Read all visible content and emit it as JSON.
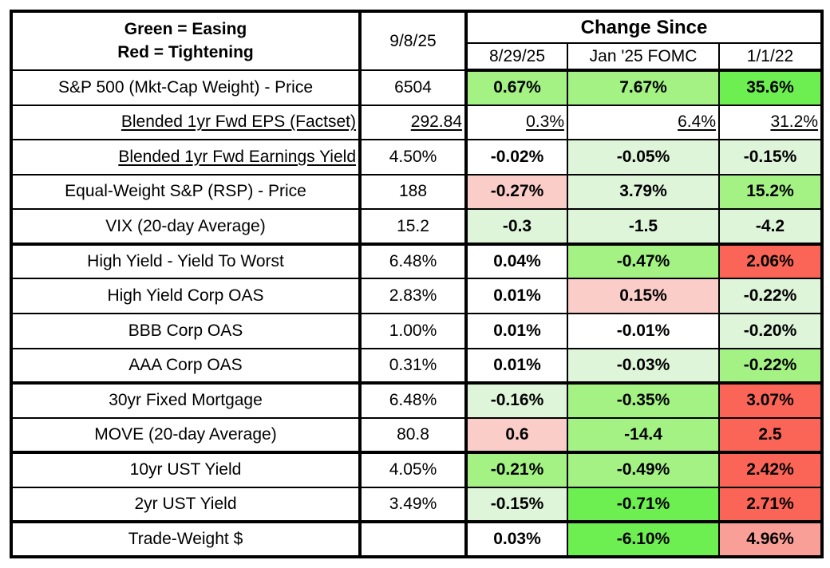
{
  "header": {
    "legend_line1": "Green = Easing",
    "legend_line2": "Red = Tightening",
    "current_date_label": "9/8/25",
    "change_since_label": "Change Since",
    "change_columns": [
      "8/29/25",
      "Jan '25 FOMC",
      "1/1/22"
    ]
  },
  "colors": {
    "white": "#FFFFFF",
    "g1": "#DFF5DA",
    "g2": "#A3F283",
    "g3": "#6DEF51",
    "r1": "#FACDC9",
    "r2": "#FA9F97",
    "r3": "#FB6557"
  },
  "chart_data": {
    "type": "table",
    "title": "Market indicators: current level and change since prior dates",
    "legend": {
      "green_means": "Easing",
      "red_means": "Tightening"
    },
    "columns": [
      "Green = Easing / Red = Tightening",
      "9/8/25",
      "8/29/25",
      "Jan '25 FOMC",
      "1/1/22"
    ],
    "rows": [
      {
        "label": "S&P 500 (Mkt-Cap Weight) - Price",
        "value": "6504",
        "changes": [
          "0.67%",
          "7.67%",
          "35.6%"
        ],
        "bg": [
          "g2",
          "g2",
          "g3"
        ],
        "style": "plain",
        "group_end": false
      },
      {
        "label": "Blended 1yr Fwd EPS (Factset)",
        "value": "292.84",
        "changes": [
          "0.3%",
          "6.4%",
          "31.2%"
        ],
        "bg": [
          "white",
          "white",
          "white"
        ],
        "style": "all_underline",
        "group_end": false
      },
      {
        "label": "Blended 1yr Fwd Earnings Yield",
        "value": "4.50%",
        "changes": [
          "-0.02%",
          "-0.05%",
          "-0.15%"
        ],
        "bg": [
          "white",
          "g1",
          "g1"
        ],
        "style": "label_underline",
        "group_end": false
      },
      {
        "label": "Equal-Weight S&P (RSP) - Price",
        "value": "188",
        "changes": [
          "-0.27%",
          "3.79%",
          "15.2%"
        ],
        "bg": [
          "r1",
          "g1",
          "g2"
        ],
        "style": "plain",
        "group_end": false
      },
      {
        "label": "VIX (20-day Average)",
        "value": "15.2",
        "changes": [
          "-0.3",
          "-1.5",
          "-4.2"
        ],
        "bg": [
          "g1",
          "g1",
          "g1"
        ],
        "style": "plain",
        "group_end": true
      },
      {
        "label": "High Yield - Yield To Worst",
        "value": "6.48%",
        "changes": [
          "0.04%",
          "-0.47%",
          "2.06%"
        ],
        "bg": [
          "white",
          "g2",
          "r3"
        ],
        "style": "plain",
        "group_end": false
      },
      {
        "label": "High Yield Corp OAS",
        "value": "2.83%",
        "changes": [
          "0.01%",
          "0.15%",
          "-0.22%"
        ],
        "bg": [
          "white",
          "r1",
          "g1"
        ],
        "style": "plain",
        "group_end": false
      },
      {
        "label": "BBB Corp OAS",
        "value": "1.00%",
        "changes": [
          "0.01%",
          "-0.01%",
          "-0.20%"
        ],
        "bg": [
          "white",
          "white",
          "g1"
        ],
        "style": "plain",
        "group_end": false
      },
      {
        "label": "AAA Corp OAS",
        "value": "0.31%",
        "changes": [
          "0.01%",
          "-0.03%",
          "-0.22%"
        ],
        "bg": [
          "white",
          "g1",
          "g2"
        ],
        "style": "plain",
        "group_end": true
      },
      {
        "label": "30yr Fixed Mortgage",
        "value": "6.48%",
        "changes": [
          "-0.16%",
          "-0.35%",
          "3.07%"
        ],
        "bg": [
          "g1",
          "g2",
          "r3"
        ],
        "style": "plain",
        "group_end": false
      },
      {
        "label": "MOVE (20-day Average)",
        "value": "80.8",
        "changes": [
          "0.6",
          "-14.4",
          "2.5"
        ],
        "bg": [
          "r1",
          "g2",
          "r3"
        ],
        "style": "plain",
        "group_end": true
      },
      {
        "label": "10yr UST Yield",
        "value": "4.05%",
        "changes": [
          "-0.21%",
          "-0.49%",
          "2.42%"
        ],
        "bg": [
          "g2",
          "g2",
          "r3"
        ],
        "style": "plain",
        "group_end": false
      },
      {
        "label": "2yr UST Yield",
        "value": "3.49%",
        "changes": [
          "-0.15%",
          "-0.71%",
          "2.71%"
        ],
        "bg": [
          "g1",
          "g3",
          "r3"
        ],
        "style": "plain",
        "group_end": true
      },
      {
        "label": "Trade-Weight $",
        "value": "",
        "changes": [
          "0.03%",
          "-6.10%",
          "4.96%"
        ],
        "bg": [
          "white",
          "g3",
          "r2"
        ],
        "style": "plain",
        "group_end": false
      }
    ]
  }
}
